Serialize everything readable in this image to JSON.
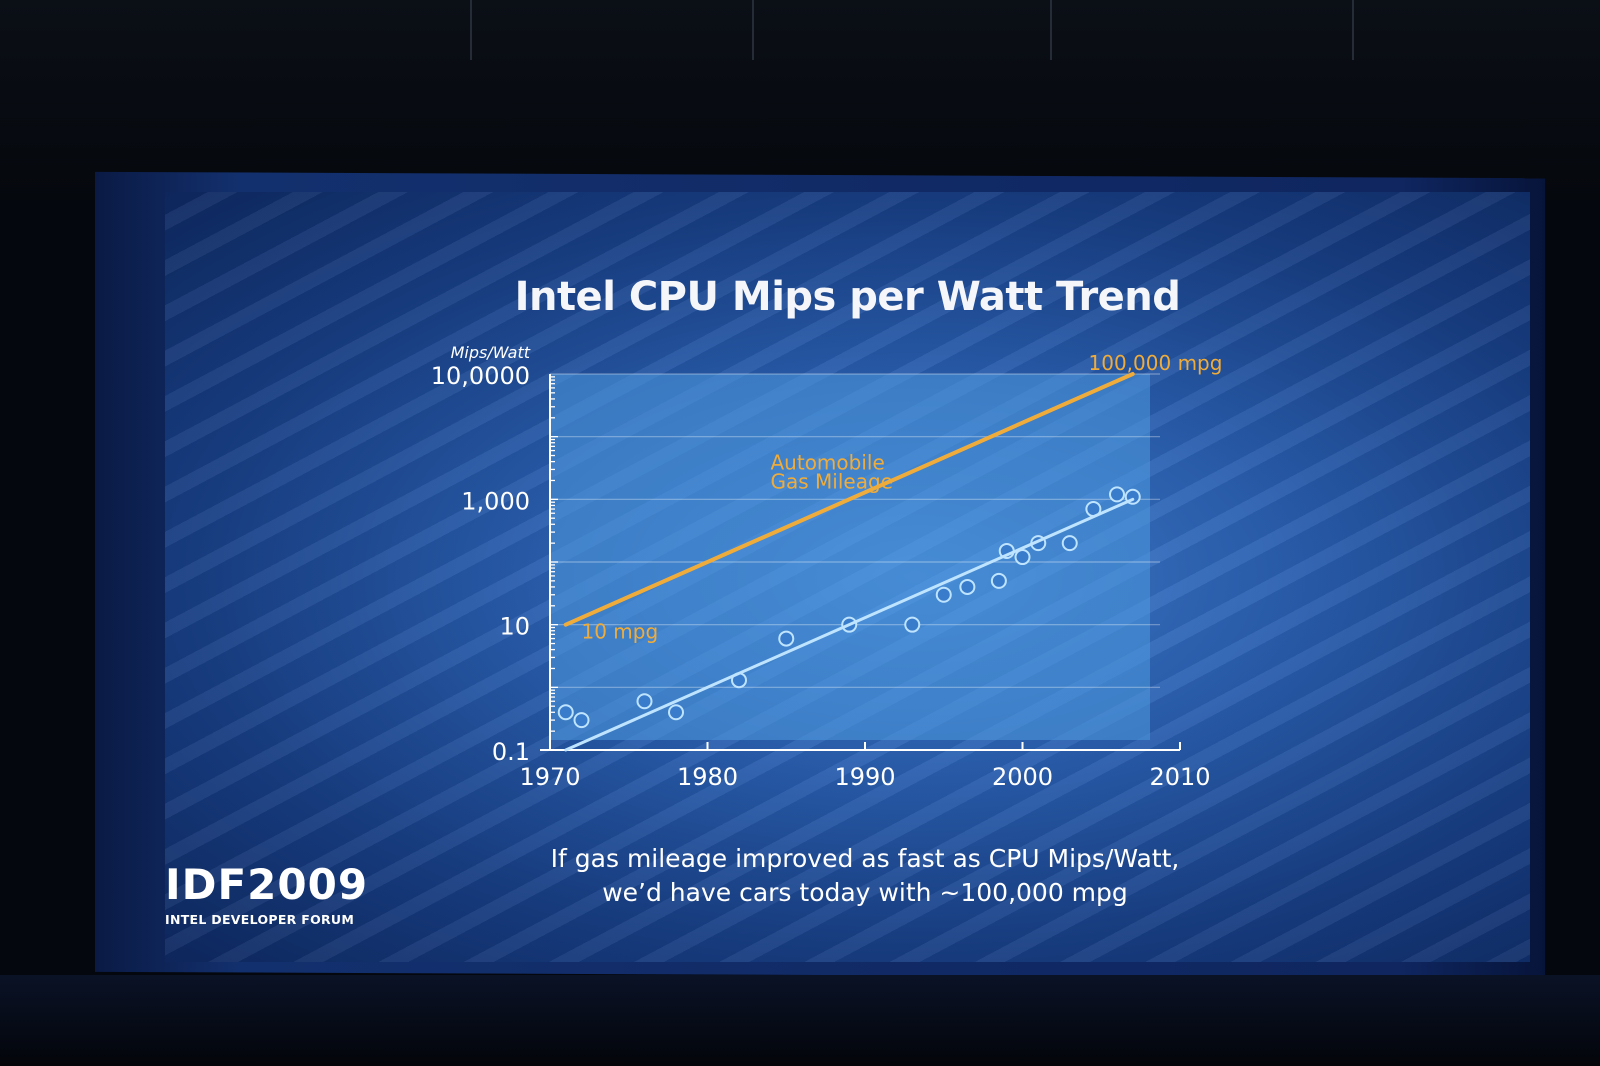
{
  "slide": {
    "title": "Intel CPU Mips per Watt Trend",
    "caption_line1": "If gas mileage improved as fast as CPU Mips/Watt,",
    "caption_line2": "we’d have cars today with ~100,000 mpg",
    "logo": "IDF2009",
    "logo_subtitle": "INTEL DEVELOPER FORUM"
  },
  "colors": {
    "accent_orange": "#f0ac3a",
    "trend_blue": "#bfe4ff",
    "plot_bg": "#4f9ae0",
    "axis": "#ffffff"
  },
  "chart_data": {
    "type": "scatter",
    "title": "Intel CPU Mips per Watt Trend",
    "ylabel": "Mips/Watt",
    "xlabel": "",
    "y_scale": "log",
    "x_ticks": [
      "1970",
      "1980",
      "1990",
      "2000",
      "2010"
    ],
    "y_ticks": [
      {
        "value": 0.1,
        "label": "0.1"
      },
      {
        "value": 10,
        "label": "10"
      },
      {
        "value": 1000,
        "label": "1,000"
      },
      {
        "value": 100000,
        "label": "10,0000"
      }
    ],
    "xlim": [
      1970,
      2010
    ],
    "ylim": [
      0.1,
      100000
    ],
    "series": [
      {
        "name": "Automobile Gas Mileage",
        "kind": "line",
        "color": "#f0ac3a",
        "x": [
          1971,
          2007
        ],
        "y": [
          10,
          100000
        ]
      },
      {
        "kind": "scatter",
        "color": "#bfe4ff",
        "x": [
          1971,
          1972,
          1976,
          1978,
          1982,
          1985,
          1989,
          1993,
          1995,
          1996.5,
          1998.5,
          1999,
          2000,
          2001,
          2003,
          2004.5,
          2006,
          2007
        ],
        "y": [
          0.4,
          0.3,
          0.6,
          0.4,
          1.3,
          6,
          10,
          10,
          30,
          40,
          50,
          150,
          120,
          200,
          200,
          700,
          1200,
          1100
        ]
      },
      {
        "kind": "trendline",
        "color": "#bfe4ff",
        "x": [
          1971,
          2007
        ],
        "y": [
          0.1,
          1000
        ]
      }
    ],
    "annotations": [
      {
        "text": "100,000 mpg",
        "x": 2008,
        "y": 100000
      },
      {
        "text": "10 mpg",
        "x": 1972,
        "y": 6
      },
      {
        "text": "Automobile",
        "x": 1984,
        "y": 3000
      },
      {
        "text": "Gas Mileage",
        "x": 1984,
        "y": 1500
      }
    ],
    "grid": true,
    "legend": "none"
  }
}
